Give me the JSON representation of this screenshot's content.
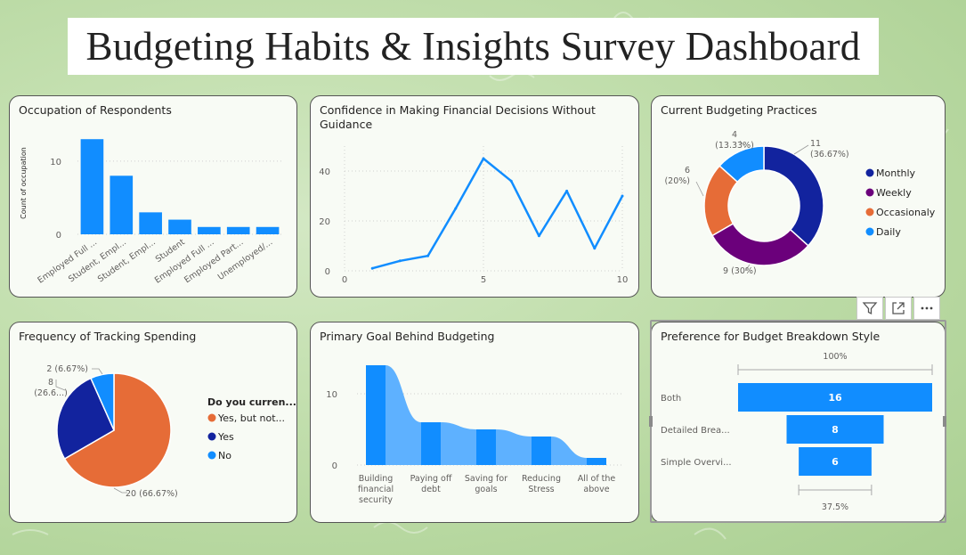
{
  "dashboard": {
    "title": "Budgeting Habits & Insights Survey Dashboard"
  },
  "cards": {
    "occupation": {
      "title": "Occupation of Respondents"
    },
    "confidence": {
      "title": "Confidence in Making Financial Decisions Without Guidance"
    },
    "practices": {
      "title": "Current Budgeting Practices"
    },
    "tracking": {
      "title": "Frequency of Tracking Spending"
    },
    "goal": {
      "title": "Primary Goal Behind Budgeting"
    },
    "breakdown": {
      "title": "Preference for Budget Breakdown Style"
    }
  },
  "toolbar": {
    "filter_icon": "filter-icon",
    "focus_icon": "focus-mode-icon",
    "more_icon": "more-options-icon"
  },
  "chart_data": [
    {
      "id": "occupation",
      "type": "bar",
      "title": "Occupation of Respondents",
      "ylabel": "Count of occupation",
      "ylim": [
        0,
        14
      ],
      "yticks": [
        0,
        10
      ],
      "categories": [
        "Employed Full ...",
        "Student, Empl...",
        "Student, Empl...",
        "Student",
        "Employed Full ...",
        "Employed Part...",
        "Unemployed/..."
      ],
      "values": [
        13,
        8,
        3,
        2,
        1,
        1,
        1
      ],
      "color": "#118dff"
    },
    {
      "id": "confidence",
      "type": "line",
      "title": "Confidence in Making Financial Decisions Without Guidance",
      "x": [
        1,
        2,
        3,
        4,
        5,
        6,
        7,
        8,
        9,
        10
      ],
      "y": [
        1,
        4,
        6,
        25,
        45,
        36,
        14,
        32,
        9,
        30
      ],
      "xlim": [
        0,
        10
      ],
      "ylim": [
        0,
        50
      ],
      "xticks": [
        0,
        5,
        10
      ],
      "yticks": [
        0,
        20,
        40
      ],
      "color": "#118dff"
    },
    {
      "id": "practices",
      "type": "pie",
      "donut": true,
      "title": "Current Budgeting Practices",
      "labels": [
        "Monthly",
        "Weekly",
        "Occasionaly",
        "Daily"
      ],
      "values": [
        11,
        9,
        6,
        4
      ],
      "data_labels": [
        "11\n(36.67%)",
        "9 (30%)",
        "6\n(20%)",
        "4\n(13.33%)"
      ],
      "colors": [
        "#12239e",
        "#6b007b",
        "#e66c37",
        "#118dff"
      ],
      "legend": "right"
    },
    {
      "id": "tracking",
      "type": "pie",
      "title": "Frequency of Tracking Spending",
      "legend_title": "Do you curren...",
      "labels": [
        "Yes, but not...",
        "Yes",
        "No"
      ],
      "values": [
        20,
        8,
        2
      ],
      "data_labels": [
        "20 (66.67%)",
        "8\n(26.6...)",
        "2 (6.67%)"
      ],
      "colors": [
        "#e66c37",
        "#12239e",
        "#118dff"
      ],
      "legend": "right"
    },
    {
      "id": "goal",
      "type": "bar",
      "subtype": "ribbon",
      "title": "Primary Goal Behind Budgeting",
      "categories": [
        "Building financial security",
        "Paying off debt",
        "Saving for goals",
        "Reducing Stress",
        "All of the above"
      ],
      "category_lines": [
        [
          "Building",
          "financial",
          "security"
        ],
        [
          "Paying off",
          "debt"
        ],
        [
          "Saving for",
          "goals"
        ],
        [
          "Reducing",
          "Stress"
        ],
        [
          "All of the",
          "above"
        ]
      ],
      "values": [
        14,
        6,
        5,
        4,
        1
      ],
      "ylim": [
        0,
        15
      ],
      "yticks": [
        0,
        10
      ],
      "colors": [
        "#118dff",
        "#5eb1ff"
      ]
    },
    {
      "id": "breakdown",
      "type": "bar",
      "subtype": "funnel",
      "title": "Preference for Budget Breakdown Style",
      "categories": [
        "Both",
        "Detailed Brea...",
        "Simple Overvi..."
      ],
      "values": [
        16,
        8,
        6
      ],
      "top_percent": "100%",
      "bottom_percent": "37.5%",
      "color": "#118dff"
    }
  ]
}
